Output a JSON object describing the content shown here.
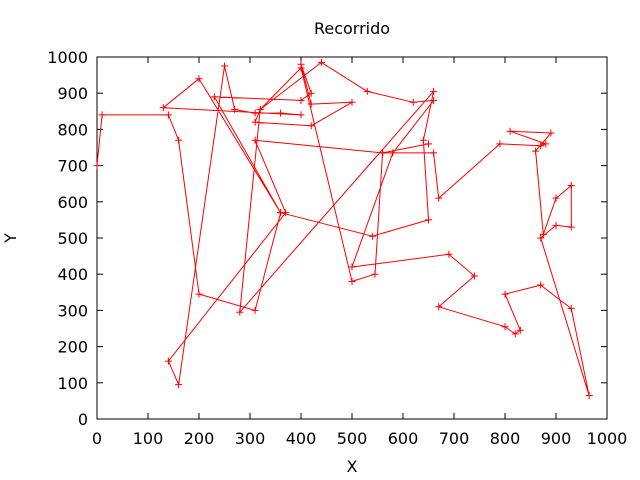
{
  "chart_data": {
    "type": "line",
    "title": "Recorrido",
    "xlabel": "X",
    "ylabel": "Y",
    "xlim": [
      0,
      1000
    ],
    "ylim": [
      0,
      1000
    ],
    "xticks": [
      0,
      100,
      200,
      300,
      400,
      500,
      600,
      700,
      800,
      900,
      1000
    ],
    "yticks": [
      0,
      100,
      200,
      300,
      400,
      500,
      600,
      700,
      800,
      900,
      1000
    ],
    "grid": false,
    "marker": "+",
    "series_color": "#ff0000",
    "series": [
      {
        "points": [
          [
            0,
            700
          ],
          [
            10,
            840
          ],
          [
            140,
            840
          ],
          [
            160,
            770
          ],
          [
            200,
            345
          ],
          [
            310,
            300
          ],
          [
            360,
            570
          ],
          [
            230,
            890
          ],
          [
            400,
            880
          ],
          [
            420,
            900
          ],
          [
            400,
            980
          ],
          [
            420,
            870
          ],
          [
            500,
            875
          ],
          [
            420,
            810
          ],
          [
            310,
            820
          ],
          [
            320,
            855
          ],
          [
            440,
            985
          ],
          [
            530,
            905
          ],
          [
            620,
            875
          ],
          [
            660,
            880
          ],
          [
            580,
            735
          ],
          [
            500,
            420
          ],
          [
            690,
            455
          ],
          [
            740,
            395
          ],
          [
            670,
            310
          ],
          [
            800,
            255
          ],
          [
            820,
            235
          ],
          [
            830,
            245
          ],
          [
            800,
            345
          ],
          [
            870,
            370
          ],
          [
            930,
            305
          ],
          [
            965,
            65
          ],
          [
            870,
            500
          ],
          [
            900,
            535
          ],
          [
            930,
            530
          ],
          [
            930,
            645
          ],
          [
            900,
            610
          ],
          [
            875,
            510
          ],
          [
            860,
            740
          ],
          [
            890,
            790
          ],
          [
            810,
            795
          ],
          [
            880,
            760
          ],
          [
            870,
            755
          ],
          [
            790,
            760
          ],
          [
            670,
            610
          ],
          [
            660,
            735
          ],
          [
            560,
            735
          ],
          [
            310,
            770
          ],
          [
            370,
            570
          ],
          [
            140,
            160
          ],
          [
            160,
            95
          ],
          [
            250,
            975
          ],
          [
            270,
            855
          ],
          [
            310,
            845
          ],
          [
            360,
            845
          ],
          [
            400,
            840
          ],
          [
            130,
            860
          ],
          [
            200,
            940
          ],
          [
            360,
            570
          ],
          [
            540,
            505
          ],
          [
            650,
            550
          ],
          [
            640,
            770
          ],
          [
            660,
            905
          ],
          [
            280,
            295
          ],
          [
            320,
            855
          ],
          [
            400,
            970
          ],
          [
            500,
            380
          ],
          [
            545,
            400
          ],
          [
            560,
            735
          ],
          [
            650,
            760
          ]
        ]
      }
    ]
  }
}
